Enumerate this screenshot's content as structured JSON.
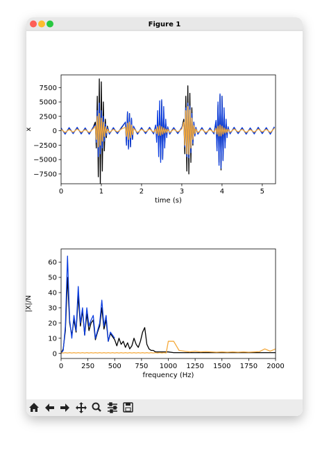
{
  "window": {
    "title": "Figure 1"
  },
  "chart_data": [
    {
      "type": "line",
      "xlabel": "time (s)",
      "ylabel": "x",
      "xlim": [
        0,
        5.33
      ],
      "ylim": [
        -9200,
        9700
      ],
      "xticks": [
        0,
        1,
        2,
        3,
        4,
        5
      ],
      "yticks": [
        {
          "value": -7500,
          "label": "−7500"
        },
        {
          "value": -5000,
          "label": "−5000"
        },
        {
          "value": -2500,
          "label": "−2500"
        },
        0,
        2500,
        5000,
        7500
      ],
      "x": [
        0,
        0.1,
        0.2,
        0.3,
        0.4,
        0.5,
        0.6,
        0.7,
        0.8,
        0.85,
        0.875,
        0.9,
        0.925,
        0.95,
        0.975,
        1,
        1.025,
        1.05,
        1.075,
        1.1,
        1.125,
        1.15,
        1.2,
        1.3,
        1.4,
        1.5,
        1.6,
        1.625,
        1.65,
        1.675,
        1.7,
        1.725,
        1.75,
        1.775,
        1.8,
        1.9,
        2,
        2.1,
        2.2,
        2.3,
        2.35,
        2.375,
        2.4,
        2.425,
        2.45,
        2.475,
        2.5,
        2.525,
        2.55,
        2.575,
        2.6,
        2.625,
        2.65,
        2.7,
        2.8,
        2.9,
        3,
        3.05,
        3.075,
        3.1,
        3.125,
        3.15,
        3.175,
        3.2,
        3.225,
        3.25,
        3.275,
        3.3,
        3.325,
        3.35,
        3.4,
        3.5,
        3.6,
        3.7,
        3.8,
        3.85,
        3.875,
        3.9,
        3.925,
        3.95,
        3.975,
        4,
        4.025,
        4.05,
        4.075,
        4.1,
        4.125,
        4.15,
        4.2,
        4.3,
        4.4,
        4.5,
        4.6,
        4.7,
        4.8,
        4.9,
        5,
        5.1,
        5.2,
        5.3
      ],
      "series": [
        {
          "color": "#000000",
          "values": [
            400,
            -500,
            450,
            -400,
            500,
            -450,
            400,
            -500,
            600,
            1500,
            -3000,
            6000,
            -8000,
            9000,
            -9200,
            8500,
            -7000,
            5000,
            -3500,
            2000,
            -1200,
            800,
            -500,
            400,
            -450,
            500,
            1500,
            -2500,
            3200,
            -3000,
            3000,
            -2800,
            2000,
            -1500,
            700,
            -500,
            450,
            -400,
            500,
            -450,
            500,
            -900,
            1500,
            -2500,
            3500,
            -5000,
            5200,
            -4800,
            3500,
            -2500,
            1500,
            -800,
            600,
            -450,
            500,
            -400,
            450,
            2000,
            -4000,
            6000,
            -7000,
            7800,
            -7500,
            6500,
            -5500,
            4000,
            -2500,
            1500,
            -900,
            500,
            -500,
            450,
            -500,
            400,
            -450,
            1500,
            -3000,
            4500,
            -5500,
            6200,
            -6800,
            6000,
            -5000,
            3500,
            -2500,
            1500,
            -800,
            500,
            -450,
            500,
            -400,
            450,
            -500,
            400,
            -450,
            500,
            -400,
            450,
            -500,
            600
          ]
        },
        {
          "color": "#0b3de0",
          "values": [
            500,
            -600,
            550,
            -500,
            600,
            -550,
            500,
            -600,
            650,
            1000,
            -2000,
            3500,
            -4500,
            4800,
            -4000,
            3500,
            -3000,
            2500,
            -1800,
            1200,
            -800,
            600,
            -600,
            550,
            -500,
            600,
            1500,
            -2500,
            3300,
            -3200,
            3000,
            -2800,
            2200,
            -1500,
            800,
            -600,
            550,
            -500,
            600,
            -550,
            1000,
            -2000,
            3500,
            -4500,
            5200,
            -5500,
            5400,
            -5000,
            4200,
            -3000,
            2000,
            -1200,
            700,
            -600,
            550,
            -500,
            600,
            1500,
            -2800,
            4000,
            -4500,
            4800,
            -4700,
            4300,
            -3800,
            3000,
            -2200,
            1500,
            -900,
            600,
            -600,
            550,
            -600,
            500,
            -550,
            1800,
            -3500,
            5000,
            -6000,
            6400,
            -6500,
            6000,
            -5200,
            4000,
            -3000,
            2000,
            -1200,
            700,
            -550,
            600,
            -500,
            550,
            -600,
            500,
            -550,
            600,
            -500,
            550,
            -600,
            700
          ]
        },
        {
          "color": "#f5a93a",
          "values": [
            250,
            -300,
            200,
            -250,
            300,
            -250,
            200,
            -300,
            350,
            800,
            -1500,
            2500,
            -2800,
            3000,
            -2500,
            2200,
            -1800,
            1500,
            -1000,
            700,
            -400,
            300,
            -300,
            250,
            -200,
            300,
            600,
            -1000,
            1300,
            -1500,
            1500,
            -1200,
            1000,
            -700,
            400,
            -300,
            250,
            -200,
            300,
            -250,
            300,
            -500,
            700,
            -800,
            900,
            -800,
            700,
            -600,
            500,
            -400,
            300,
            -300,
            250,
            -300,
            250,
            -200,
            300,
            1500,
            -2500,
            3500,
            -4000,
            4200,
            -4100,
            3600,
            -3000,
            2200,
            -1500,
            900,
            -500,
            300,
            -300,
            250,
            -300,
            200,
            -250,
            400,
            -600,
            800,
            -900,
            1000,
            -900,
            800,
            -600,
            500,
            -400,
            300,
            -300,
            250,
            -250,
            300,
            -200,
            250,
            -300,
            200,
            -250,
            300,
            -200,
            250,
            -300,
            400
          ]
        }
      ]
    },
    {
      "type": "line",
      "xlabel": "frequency (Hz)",
      "ylabel": "|X|/N",
      "xlim": [
        0,
        2000
      ],
      "ylim": [
        -3.3,
        68.7
      ],
      "xticks": [
        0,
        250,
        500,
        750,
        1000,
        1250,
        1500,
        1750,
        2000
      ],
      "yticks": [
        0,
        10,
        20,
        30,
        40,
        50,
        60
      ],
      "x": [
        0,
        20,
        40,
        60,
        80,
        100,
        120,
        140,
        160,
        180,
        200,
        220,
        240,
        260,
        280,
        300,
        320,
        340,
        360,
        380,
        400,
        420,
        440,
        460,
        480,
        500,
        520,
        540,
        560,
        580,
        600,
        620,
        640,
        660,
        680,
        700,
        720,
        740,
        760,
        780,
        800,
        820,
        840,
        860,
        880,
        900,
        920,
        940,
        960,
        980,
        1000,
        1050,
        1100,
        1150,
        1200,
        1250,
        1300,
        1350,
        1400,
        1450,
        1500,
        1550,
        1600,
        1650,
        1700,
        1750,
        1800,
        1850,
        1900,
        1950,
        2000
      ],
      "series": [
        {
          "color": "#000000",
          "values": [
            0,
            3,
            15,
            50,
            20,
            12,
            22,
            14,
            38,
            18,
            28,
            12,
            26,
            15,
            20,
            22,
            9,
            14,
            18,
            30,
            16,
            22,
            8,
            13,
            11,
            9,
            5,
            10,
            6,
            8,
            4,
            7,
            3,
            5,
            10,
            6,
            4,
            8,
            14,
            17,
            6,
            3,
            2,
            2,
            1,
            1,
            1,
            1,
            1,
            1,
            1,
            0.5,
            0.5,
            0.5,
            0.5,
            0.5,
            0.5,
            0.5,
            0.5,
            0.5,
            0.5,
            0.5,
            0.5,
            0.5,
            0.5,
            0.5,
            0.5,
            0.5,
            0.5,
            0.5,
            0.5
          ]
        },
        {
          "color": "#0b3de0",
          "values": [
            0,
            2,
            18,
            64,
            22,
            10,
            25,
            15,
            44,
            20,
            30,
            12,
            30,
            18,
            22,
            25,
            10,
            15,
            20,
            35,
            18,
            25,
            8,
            14,
            12,
            10,
            null,
            null,
            null,
            null,
            null,
            null,
            null,
            null,
            null,
            null,
            null,
            null,
            null,
            null,
            null,
            null,
            null,
            null,
            null,
            null,
            null,
            null,
            null,
            null,
            null,
            null,
            null,
            null,
            null,
            null,
            null,
            null,
            null,
            null,
            null,
            null,
            null,
            null,
            null,
            null,
            null,
            null,
            null,
            null,
            null
          ]
        },
        {
          "color": "#f5a93a",
          "values": [
            0.5,
            0.3,
            0.5,
            0.3,
            0.5,
            0.3,
            0.5,
            0.3,
            0.5,
            0.3,
            0.5,
            0.3,
            0.5,
            0.3,
            0.5,
            0.3,
            0.5,
            0.3,
            0.5,
            0.3,
            0.5,
            0.3,
            0.5,
            0.3,
            0.5,
            0.3,
            0.5,
            0.3,
            0.5,
            0.3,
            0.5,
            0.3,
            0.5,
            0.3,
            0.5,
            0.3,
            0.5,
            0.3,
            0.5,
            0.3,
            0.5,
            0.3,
            0.5,
            0.3,
            0.5,
            0.3,
            0.5,
            0.3,
            0.5,
            0.3,
            8,
            8,
            2,
            1.5,
            1,
            1.5,
            1,
            1.2,
            1,
            0.8,
            1,
            0.8,
            1,
            0.8,
            1,
            0.8,
            1,
            1.2,
            3,
            1.5,
            3
          ]
        }
      ]
    }
  ]
}
